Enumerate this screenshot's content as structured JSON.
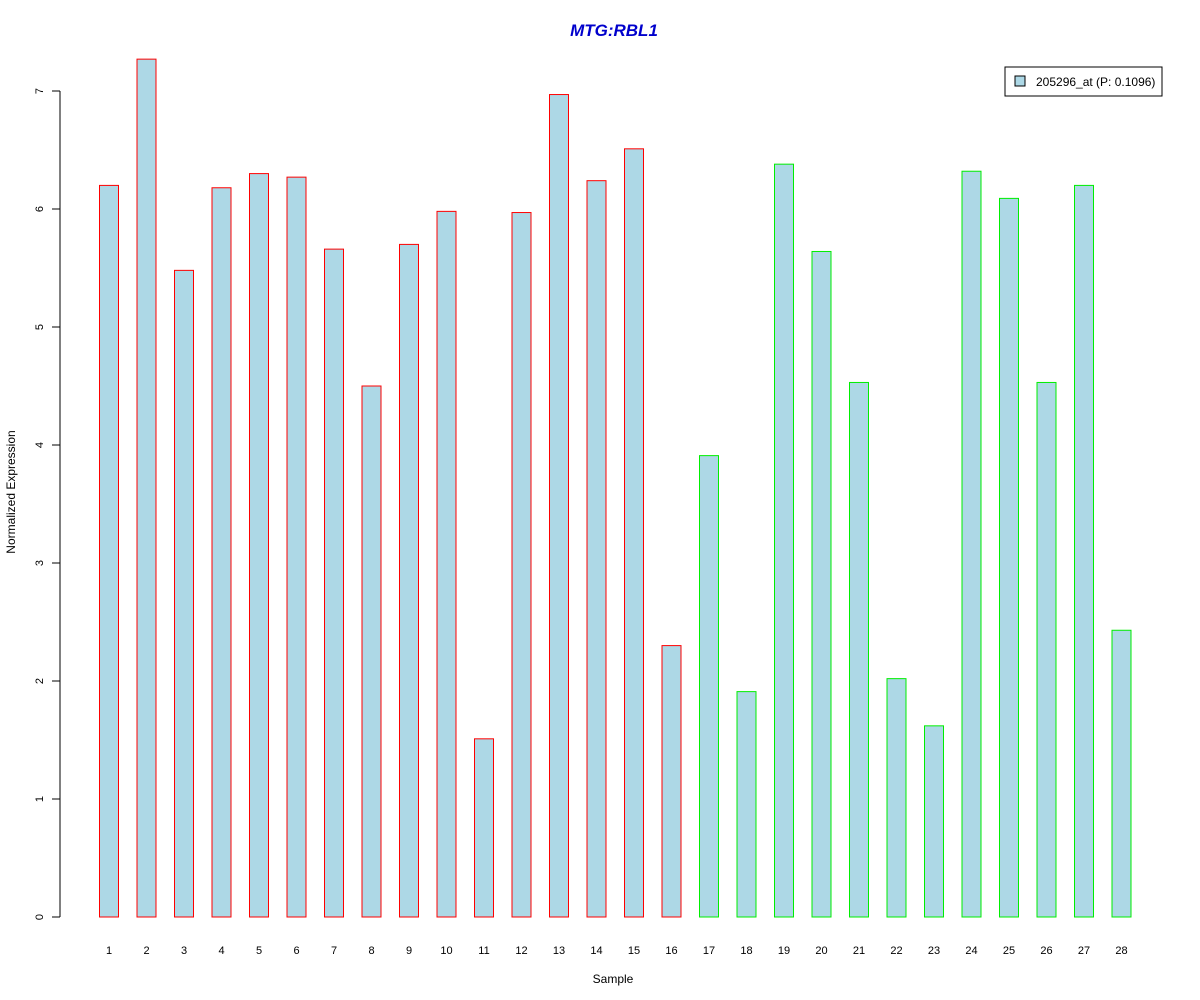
{
  "chart_data": {
    "type": "bar",
    "title": "MTG:RBL1",
    "xlabel": "Sample",
    "ylabel": "Normalized Expression",
    "ylim": [
      0,
      7.3
    ],
    "yticks": [
      0,
      1,
      2,
      3,
      4,
      5,
      6,
      7
    ],
    "categories": [
      "1",
      "2",
      "3",
      "4",
      "5",
      "6",
      "7",
      "8",
      "9",
      "10",
      "11",
      "12",
      "13",
      "14",
      "15",
      "16",
      "17",
      "18",
      "19",
      "20",
      "21",
      "22",
      "23",
      "24",
      "25",
      "26",
      "27",
      "28"
    ],
    "values": [
      6.2,
      7.27,
      5.48,
      6.18,
      6.3,
      6.27,
      5.66,
      4.5,
      5.7,
      5.98,
      1.51,
      5.97,
      6.97,
      6.24,
      6.51,
      2.3,
      3.91,
      1.91,
      6.38,
      5.64,
      4.53,
      2.02,
      1.62,
      6.32,
      6.09,
      4.53,
      6.2,
      2.43
    ],
    "group_border_colors": [
      "#ff0000",
      "#ff0000",
      "#ff0000",
      "#ff0000",
      "#ff0000",
      "#ff0000",
      "#ff0000",
      "#ff0000",
      "#ff0000",
      "#ff0000",
      "#ff0000",
      "#ff0000",
      "#ff0000",
      "#ff0000",
      "#ff0000",
      "#ff0000",
      "#00ee00",
      "#00ee00",
      "#00ee00",
      "#00ee00",
      "#00ee00",
      "#00ee00",
      "#00ee00",
      "#00ee00",
      "#00ee00",
      "#00ee00",
      "#00ee00",
      "#00ee00"
    ],
    "bar_fill": "#add8e6",
    "legend": {
      "label": "205296_at (P: 0.1096)",
      "position": "top-right",
      "swatch_color": "#add8e6"
    },
    "grid": false
  }
}
